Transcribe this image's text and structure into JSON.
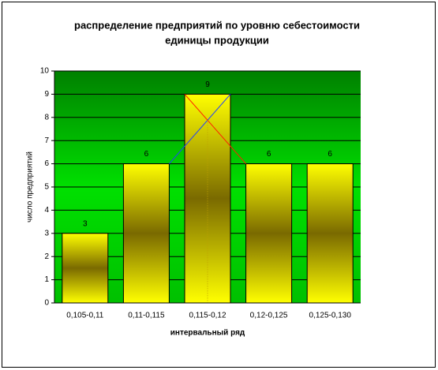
{
  "chart_data": {
    "type": "bar",
    "title": [
      "распределение предприятий по уровню себестоимости",
      "единицы продукции"
    ],
    "x_label": "интервальный ряд",
    "y_label": "число предприятий",
    "categories": [
      "0,105-0,11",
      "0,11-0,115",
      "0,115-0,12",
      "0,12-0,125",
      "0,125-0,130"
    ],
    "values": [
      3,
      6,
      9,
      6,
      6
    ],
    "color": "#ffff00",
    "ylim": [
      0,
      10
    ],
    "yticks": [
      0,
      1,
      2,
      3,
      4,
      5,
      6,
      7,
      8,
      9,
      10
    ],
    "grid": true
  }
}
